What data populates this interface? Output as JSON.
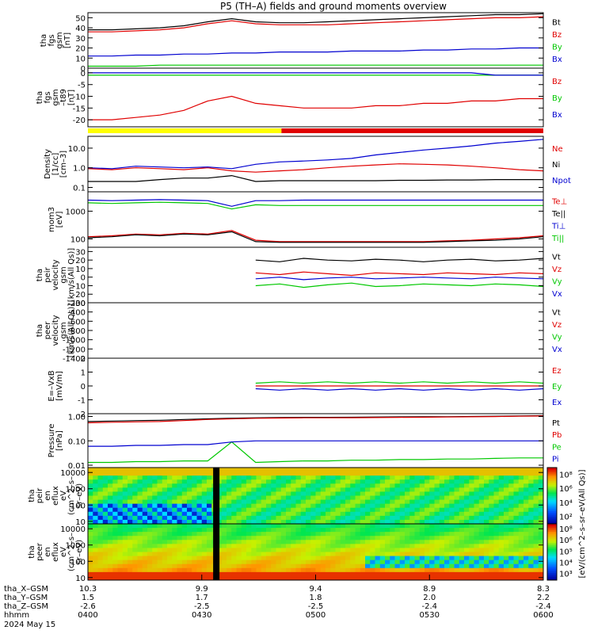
{
  "title": "P5 (TH–A) fields and ground moments overview",
  "date": "2024 May 15",
  "time_axis": {
    "ticks": [
      "0400",
      "0430",
      "0500",
      "0530",
      "0600"
    ],
    "rows": [
      {
        "name": "tha_X–GSM",
        "values": [
          "10.3",
          "9.9",
          "9.4",
          "8.9",
          "8.3"
        ]
      },
      {
        "name": "tha_Y–GSM",
        "values": [
          "1.5",
          "1.7",
          "1.8",
          "2.0",
          "2.2"
        ]
      },
      {
        "name": "tha_Z–GSM",
        "values": [
          "-2.6",
          "-2.5",
          "-2.5",
          "-2.4",
          "-2.4"
        ]
      },
      {
        "name": "hhmm",
        "values": [
          "0400",
          "0430",
          "0500",
          "0530",
          "0600"
        ]
      }
    ]
  },
  "colors": {
    "black": "#000000",
    "red": "#e00000",
    "green": "#00c800",
    "blue": "#0000d0",
    "yellow": "#ffff00"
  },
  "mode_bar": {
    "segments": [
      {
        "from": 0,
        "to": 0.425,
        "color": "yellow"
      },
      {
        "from": 0.425,
        "to": 1,
        "color": "red"
      }
    ]
  },
  "chart_data": [
    {
      "id": "fgs",
      "type": "line",
      "ylabel": [
        "tha",
        "fgs",
        "gsm",
        "[nT]"
      ],
      "ylim": [
        0,
        55
      ],
      "yticks": [
        0,
        10,
        20,
        30,
        40,
        50
      ],
      "series": [
        {
          "name": "Bt",
          "color": "black",
          "values": [
            38,
            38,
            39,
            40,
            42,
            46,
            49,
            46,
            45,
            45,
            46,
            47,
            48,
            49,
            50,
            51,
            52,
            53,
            53,
            54
          ]
        },
        {
          "name": "Bz",
          "color": "red",
          "values": [
            36,
            36,
            37,
            38,
            40,
            44,
            47,
            44,
            43,
            43,
            43,
            44,
            45,
            46,
            47,
            48,
            49,
            50,
            50,
            51
          ]
        },
        {
          "name": "By",
          "color": "green",
          "values": [
            2,
            2,
            2,
            3,
            3,
            3,
            3,
            3,
            3,
            3,
            3,
            3,
            3,
            3,
            3,
            3,
            3,
            3,
            3,
            3
          ]
        },
        {
          "name": "Bx",
          "color": "blue",
          "values": [
            12,
            12,
            13,
            13,
            14,
            14,
            15,
            15,
            16,
            16,
            16,
            17,
            17,
            17,
            18,
            18,
            19,
            19,
            20,
            20
          ]
        }
      ]
    },
    {
      "id": "fgs_dsl",
      "type": "line",
      "ylabel": [
        "tha",
        "fgs",
        "gsm",
        "–t89",
        "[nT]"
      ],
      "ylim": [
        -23,
        2
      ],
      "yticks": [
        -20,
        -15,
        -10,
        -5,
        0
      ],
      "series": [
        {
          "name": "Bz",
          "color": "red",
          "values": [
            -20,
            -20,
            -19,
            -18,
            -16,
            -12,
            -10,
            -13,
            -14,
            -15,
            -15,
            -15,
            -14,
            -14,
            -13,
            -13,
            -12,
            -12,
            -11,
            -11
          ]
        },
        {
          "name": "By",
          "color": "green",
          "values": [
            -1,
            -1,
            -1,
            -1,
            -1,
            -1,
            -1,
            -1,
            -1,
            -1,
            -1,
            -1,
            -1,
            -1,
            -1,
            -1,
            -1,
            -1,
            -1,
            -1
          ]
        },
        {
          "name": "Bx",
          "color": "blue",
          "values": [
            0,
            0,
            0,
            0,
            0,
            0,
            0,
            0,
            0,
            0,
            0,
            0,
            0,
            0,
            0,
            0,
            0,
            -1,
            -1,
            -1
          ]
        }
      ]
    },
    {
      "id": "density",
      "type": "line",
      "ylabel": [
        "Density",
        "[1/cc]",
        "[cm–3]"
      ],
      "ylim": [
        0.06,
        40
      ],
      "log": true,
      "ytick_labels": [
        "0.1",
        "1.0",
        "10.0"
      ],
      "ytick_values": [
        0.1,
        1,
        10
      ],
      "series": [
        {
          "name": "Ne",
          "color": "red",
          "values": [
            0.9,
            0.8,
            1.0,
            0.9,
            0.8,
            1.0,
            0.7,
            0.6,
            0.7,
            0.8,
            1.0,
            1.2,
            1.4,
            1.6,
            1.5,
            1.4,
            1.2,
            1.0,
            0.8,
            0.7
          ]
        },
        {
          "name": "Ni",
          "color": "black",
          "values": [
            0.2,
            0.2,
            0.2,
            0.25,
            0.3,
            0.3,
            0.4,
            0.2,
            0.22,
            0.22,
            0.22,
            0.22,
            0.22,
            0.23,
            0.23,
            0.24,
            0.24,
            0.25,
            0.25,
            0.25
          ]
        },
        {
          "name": "Npot",
          "color": "blue",
          "values": [
            1.0,
            0.9,
            1.2,
            1.1,
            1.0,
            1.1,
            0.9,
            1.5,
            2.0,
            2.2,
            2.5,
            3.0,
            4.5,
            6.0,
            8.0,
            10.0,
            13.0,
            18.0,
            22.0,
            28.0
          ]
        }
      ]
    },
    {
      "id": "temp",
      "type": "line",
      "ylabel": [
        "mom3",
        "[eV]"
      ],
      "ylim": [
        50,
        5000
      ],
      "log": true,
      "ytick_labels": [
        "100",
        "1000"
      ],
      "ytick_values": [
        100,
        1000
      ],
      "series": [
        {
          "name": "Te⊥",
          "color": "red",
          "values": [
            120,
            130,
            150,
            140,
            160,
            150,
            200,
            90,
            80,
            80,
            80,
            80,
            80,
            80,
            80,
            85,
            90,
            100,
            110,
            130
          ]
        },
        {
          "name": "Te||",
          "color": "black",
          "values": [
            110,
            120,
            140,
            130,
            150,
            140,
            180,
            80,
            75,
            75,
            75,
            75,
            75,
            75,
            75,
            80,
            85,
            90,
            100,
            120
          ]
        },
        {
          "name": "Ti⊥",
          "color": "blue",
          "values": [
            2500,
            2400,
            2500,
            2600,
            2500,
            2400,
            1500,
            2400,
            2400,
            2500,
            2500,
            2500,
            2500,
            2500,
            2500,
            2500,
            2500,
            2500,
            2500,
            2500
          ]
        },
        {
          "name": "Ti||",
          "color": "green",
          "values": [
            2000,
            1900,
            2000,
            2100,
            2000,
            1900,
            1200,
            1700,
            1600,
            1600,
            1600,
            1600,
            1600,
            1600,
            1600,
            1600,
            1600,
            1600,
            1600,
            1600
          ]
        }
      ]
    },
    {
      "id": "peir_v",
      "type": "line",
      "ylabel": [
        "tha",
        "peir",
        "velocity",
        "gsm",
        "[km/s(All Qs)]"
      ],
      "ylim": [
        -30,
        35
      ],
      "yticks": [
        -30,
        -20,
        -10,
        0,
        10,
        20,
        30
      ],
      "series": [
        {
          "name": "Vt",
          "color": "black",
          "values": [
            null,
            null,
            null,
            null,
            null,
            null,
            null,
            20,
            18,
            22,
            20,
            19,
            21,
            20,
            18,
            20,
            21,
            19,
            20,
            22
          ]
        },
        {
          "name": "Vz",
          "color": "red",
          "values": [
            null,
            null,
            null,
            null,
            null,
            null,
            null,
            5,
            3,
            6,
            4,
            2,
            5,
            4,
            3,
            5,
            4,
            3,
            5,
            4
          ]
        },
        {
          "name": "Vy",
          "color": "green",
          "values": [
            null,
            null,
            null,
            null,
            null,
            null,
            null,
            -10,
            -8,
            -12,
            -9,
            -7,
            -11,
            -10,
            -8,
            -9,
            -10,
            -8,
            -9,
            -11
          ]
        },
        {
          "name": "Vx",
          "color": "blue",
          "values": [
            null,
            null,
            null,
            null,
            null,
            null,
            null,
            -2,
            0,
            -3,
            -1,
            0,
            -2,
            -1,
            0,
            -1,
            -2,
            0,
            -1,
            -2
          ]
        }
      ]
    },
    {
      "id": "peer_v",
      "type": "line",
      "ylabel": [
        "tha",
        "peer",
        "velocity",
        "gsm",
        "[km/s(All Qs)]"
      ],
      "ylim": [
        -1400,
        -200
      ],
      "yticks": [
        -1400,
        -1200,
        -1000,
        -800,
        -600,
        -400,
        -200
      ],
      "series": [
        {
          "name": "Vt",
          "color": "black",
          "values": []
        },
        {
          "name": "Vz",
          "color": "red",
          "values": []
        },
        {
          "name": "Vy",
          "color": "green",
          "values": []
        },
        {
          "name": "Vx",
          "color": "blue",
          "values": []
        }
      ]
    },
    {
      "id": "efield",
      "type": "line",
      "ylabel": [
        "E=–VxB",
        "[mV/m]"
      ],
      "ylim": [
        -2,
        2
      ],
      "yticks": [
        -2,
        -1,
        0,
        1,
        2
      ],
      "series": [
        {
          "name": "Ez",
          "color": "red",
          "values": [
            null,
            null,
            null,
            null,
            null,
            null,
            null,
            0,
            0,
            0,
            0,
            0,
            0,
            0,
            0,
            0,
            0,
            0,
            0,
            0
          ]
        },
        {
          "name": "Ey",
          "color": "green",
          "values": [
            null,
            null,
            null,
            null,
            null,
            null,
            null,
            0.2,
            0.3,
            0.2,
            0.3,
            0.2,
            0.3,
            0.2,
            0.3,
            0.2,
            0.3,
            0.2,
            0.3,
            0.2
          ]
        },
        {
          "name": "Ex",
          "color": "blue",
          "values": [
            null,
            null,
            null,
            null,
            null,
            null,
            null,
            -0.2,
            -0.3,
            -0.2,
            -0.3,
            -0.2,
            -0.3,
            -0.2,
            -0.3,
            -0.2,
            -0.3,
            -0.2,
            -0.3,
            -0.2
          ]
        }
      ]
    },
    {
      "id": "pressure",
      "type": "line",
      "ylabel": [
        "Pressure",
        "[nPa]"
      ],
      "ylim": [
        0.008,
        1.3
      ],
      "log": true,
      "ytick_labels": [
        "0.01",
        "0.10",
        "1.00"
      ],
      "ytick_values": [
        0.01,
        0.1,
        1
      ],
      "series": [
        {
          "name": "Pt",
          "color": "black",
          "values": [
            0.62,
            0.65,
            0.68,
            0.7,
            0.75,
            0.8,
            0.85,
            0.88,
            0.9,
            0.92,
            0.92,
            0.93,
            0.95,
            0.96,
            0.97,
            0.98,
            1.0,
            1.02,
            1.05,
            1.08
          ]
        },
        {
          "name": "Pb",
          "color": "red",
          "values": [
            0.55,
            0.58,
            0.6,
            0.62,
            0.68,
            0.75,
            0.8,
            0.84,
            0.86,
            0.88,
            0.88,
            0.89,
            0.9,
            0.92,
            0.93,
            0.95,
            0.97,
            0.99,
            1.02,
            1.05
          ]
        },
        {
          "name": "Pe",
          "color": "green",
          "values": [
            0.013,
            0.013,
            0.014,
            0.014,
            0.015,
            0.015,
            0.09,
            0.013,
            0.014,
            0.015,
            0.015,
            0.016,
            0.016,
            0.017,
            0.017,
            0.018,
            0.018,
            0.019,
            0.02,
            0.02
          ]
        },
        {
          "name": "Pi",
          "color": "blue",
          "values": [
            0.06,
            0.06,
            0.065,
            0.065,
            0.07,
            0.07,
            0.09,
            0.1,
            0.1,
            0.1,
            0.1,
            0.1,
            0.1,
            0.1,
            0.1,
            0.1,
            0.1,
            0.1,
            0.1,
            0.1
          ]
        }
      ]
    },
    {
      "id": "peir_spec",
      "type": "heatmap",
      "ylabel": [
        "tha",
        "peir",
        "en",
        "eflux",
        "eV",
        "(cm^2–s–",
        "sr–eV)"
      ],
      "log": true,
      "ylim": [
        7,
        20000
      ],
      "ytick_labels": [
        "10",
        "100",
        "1000",
        "10000"
      ],
      "ytick_values": [
        10,
        100,
        1000,
        10000
      ]
    },
    {
      "id": "peer_spec",
      "type": "heatmap",
      "ylabel": [
        "tha",
        "peer",
        "en",
        "eflux",
        "eV",
        "(cm^2–s–",
        "sr–eV)"
      ],
      "log": true,
      "ylim": [
        7,
        20000
      ],
      "ytick_labels": [
        "10",
        "100",
        "1000",
        "10000"
      ],
      "ytick_values": [
        10,
        100,
        1000,
        10000
      ]
    }
  ],
  "colorbar": {
    "label": "[eV/(cm^2–s–sr–eV(All Qs)]",
    "top_labels": [
      "10⁸",
      "10⁶",
      "10⁴",
      "10²"
    ],
    "bottom_labels": [
      "10⁸",
      "10⁶",
      "10⁵",
      "10⁴",
      "10³"
    ]
  }
}
